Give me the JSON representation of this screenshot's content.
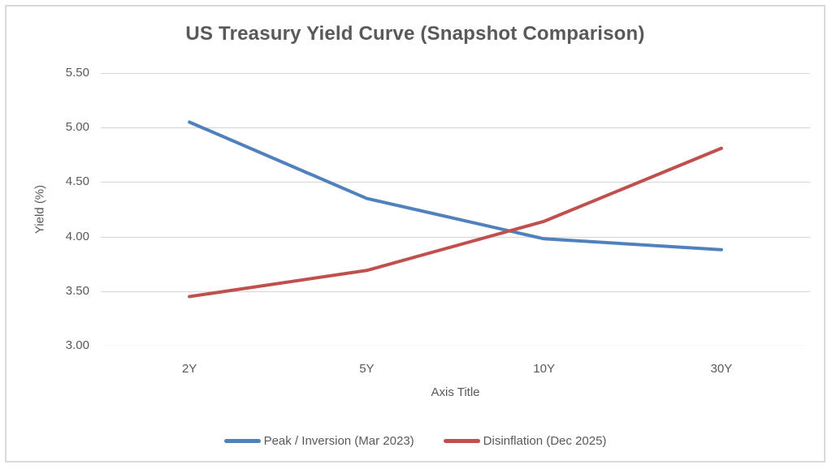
{
  "chart_data": {
    "type": "line",
    "title": "US Treasury Yield Curve (Snapshot Comparison)",
    "categories": [
      "2Y",
      "5Y",
      "10Y",
      "30Y"
    ],
    "series": [
      {
        "name": "Peak / Inversion (Mar 2023)",
        "color": "#4F81BD",
        "values": [
          5.05,
          4.35,
          3.98,
          3.88
        ]
      },
      {
        "name": "Disinflation (Dec 2025)",
        "color": "#C0504D",
        "values": [
          3.45,
          3.69,
          4.14,
          4.81
        ]
      }
    ],
    "xlabel": "Axis Title",
    "ylabel": "Yield (%)",
    "ylim": [
      3.0,
      5.5
    ],
    "y_ticks": [
      "5.50",
      "5.00",
      "4.50",
      "4.00",
      "3.50",
      "3.00"
    ],
    "y_tick_values": [
      5.5,
      5.0,
      4.5,
      4.0,
      3.5,
      3.0
    ],
    "grid": true,
    "gridline_color": "#d9d9d9",
    "legend_position": "bottom",
    "text_color": "#595959",
    "title_color": "#595959",
    "frame_border_color": "#d9d9d9",
    "background": "#ffffff"
  }
}
